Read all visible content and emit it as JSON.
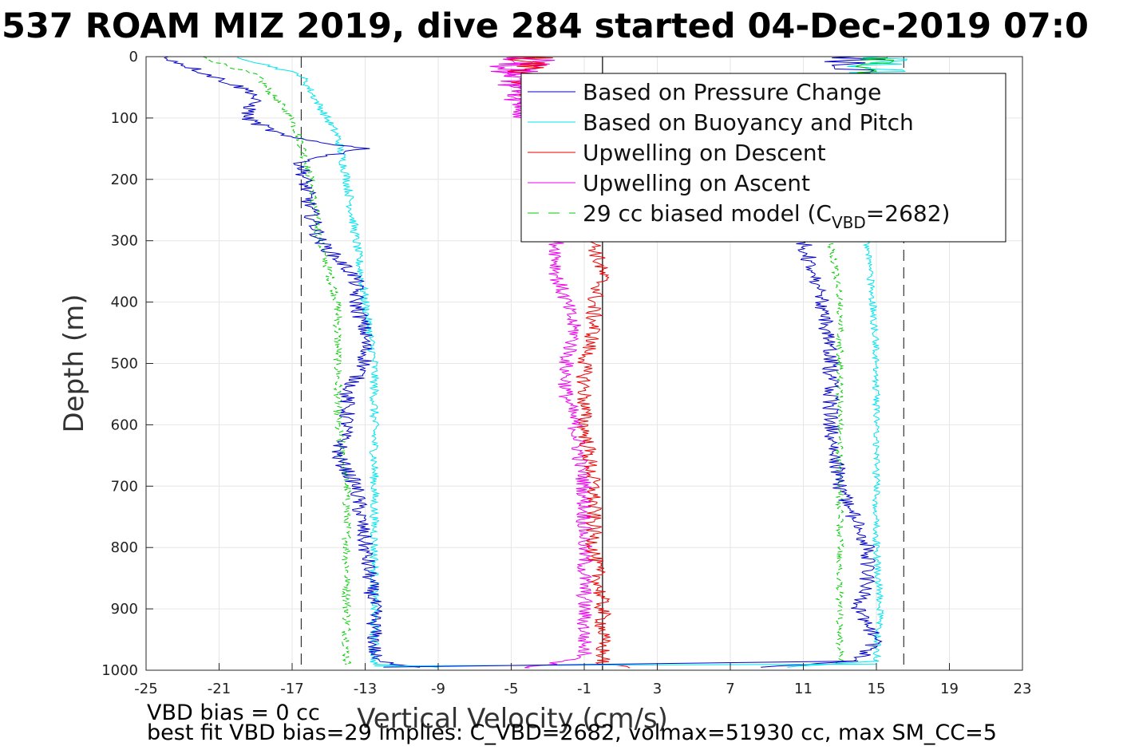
{
  "chart_data": {
    "type": "line",
    "title": "537 ROAM MIZ 2019, dive 284 started 04-Dec-2019 07:0",
    "xlabel": "Vertical Velocity (cm/s)",
    "ylabel": "Depth (m)",
    "xlim": [
      -25,
      23
    ],
    "ylim": [
      0,
      1000
    ],
    "y_reversed": true,
    "grid": true,
    "x_ticks": [
      "-25",
      "-21",
      "-17",
      "-13",
      "-9",
      "-5",
      "-1",
      "3",
      "7",
      "11",
      "15",
      "19",
      "23"
    ],
    "y_ticks": [
      "0",
      "100",
      "200",
      "300",
      "400",
      "500",
      "600",
      "700",
      "800",
      "900",
      "1000"
    ],
    "reference_lines": {
      "dashed_black_x": [
        -16.5,
        16.5
      ],
      "solid_black_x": [
        0
      ]
    },
    "legend_position": "top-right",
    "legend": {
      "pressure": "Based on Pressure Change",
      "buoyancy": "Based on Buoyancy and Pitch",
      "up_descent": "Upwelling on Descent",
      "up_ascent": "Upwelling on Ascent",
      "model_prefix": "29 cc biased model (C",
      "model_sub": "VBD",
      "model_suffix": "=2682)"
    },
    "series": [
      {
        "key": "pressure",
        "color": "#0000cc",
        "style": "solid",
        "descent": [
          [
            0,
            -24
          ],
          [
            30,
            -21.5
          ],
          [
            60,
            -19
          ],
          [
            100,
            -19.5
          ],
          [
            130,
            -17.5
          ],
          [
            150,
            -13
          ],
          [
            170,
            -16.5
          ],
          [
            250,
            -16
          ],
          [
            300,
            -15.5
          ],
          [
            360,
            -13.5
          ],
          [
            400,
            -13.5
          ],
          [
            450,
            -13
          ],
          [
            500,
            -13
          ],
          [
            550,
            -14
          ],
          [
            600,
            -14
          ],
          [
            650,
            -14.5
          ],
          [
            700,
            -13.5
          ],
          [
            800,
            -13
          ],
          [
            900,
            -12.5
          ],
          [
            960,
            -12.5
          ],
          [
            985,
            -12.5
          ],
          [
            995,
            -10
          ]
        ],
        "ascent": [
          [
            995,
            9
          ],
          [
            985,
            14
          ],
          [
            950,
            15
          ],
          [
            900,
            14
          ],
          [
            850,
            14.5
          ],
          [
            800,
            14.5
          ],
          [
            700,
            13
          ],
          [
            600,
            12.5
          ],
          [
            500,
            12.5
          ],
          [
            400,
            12
          ],
          [
            300,
            11
          ]
        ]
      },
      {
        "key": "buoyancy",
        "color": "#00e5ee",
        "style": "solid",
        "descent": [
          [
            0,
            -20
          ],
          [
            30,
            -16.5
          ],
          [
            80,
            -15.5
          ],
          [
            130,
            -14.5
          ],
          [
            200,
            -14
          ],
          [
            300,
            -13.5
          ],
          [
            400,
            -13
          ],
          [
            500,
            -12.5
          ],
          [
            600,
            -12.5
          ],
          [
            700,
            -12.5
          ],
          [
            800,
            -12.5
          ],
          [
            900,
            -12.5
          ],
          [
            990,
            -12.5
          ],
          [
            995,
            -9
          ]
        ],
        "ascent": [
          [
            995,
            10
          ],
          [
            985,
            15
          ],
          [
            900,
            15.2
          ],
          [
            800,
            15
          ],
          [
            700,
            15
          ],
          [
            600,
            15
          ],
          [
            500,
            15
          ],
          [
            400,
            14.8
          ],
          [
            300,
            14.5
          ]
        ]
      },
      {
        "key": "up_descent",
        "color": "#ee0000",
        "style": "solid",
        "points": [
          [
            300,
            -0.5
          ],
          [
            360,
            0
          ],
          [
            400,
            -0.5
          ],
          [
            450,
            -0.5
          ],
          [
            500,
            -1
          ],
          [
            550,
            -1
          ],
          [
            600,
            -1
          ],
          [
            700,
            -0.5
          ],
          [
            800,
            -0.5
          ],
          [
            900,
            0
          ],
          [
            990,
            0
          ],
          [
            996,
            1.5
          ]
        ]
      },
      {
        "key": "up_ascent",
        "color": "#ee00ee",
        "style": "solid",
        "points": [
          [
            300,
            -2.5
          ],
          [
            360,
            -2.5
          ],
          [
            400,
            -2
          ],
          [
            450,
            -1.5
          ],
          [
            500,
            -2
          ],
          [
            550,
            -2
          ],
          [
            600,
            -1.5
          ],
          [
            700,
            -1
          ],
          [
            800,
            -1
          ],
          [
            900,
            -1
          ],
          [
            980,
            -1
          ],
          [
            996,
            -4
          ]
        ]
      },
      {
        "key": "model",
        "color": "#00cc00",
        "style": "dashed",
        "descent": [
          [
            0,
            -22
          ],
          [
            30,
            -19
          ],
          [
            100,
            -17
          ],
          [
            140,
            -16.5
          ],
          [
            200,
            -16
          ],
          [
            300,
            -15.5
          ],
          [
            400,
            -14.5
          ],
          [
            500,
            -14.5
          ],
          [
            600,
            -14.5
          ],
          [
            700,
            -14
          ],
          [
            800,
            -14
          ],
          [
            900,
            -14
          ],
          [
            990,
            -14
          ]
        ],
        "ascent": [
          [
            990,
            13
          ],
          [
            900,
            13
          ],
          [
            800,
            13
          ],
          [
            700,
            13
          ],
          [
            600,
            13
          ],
          [
            500,
            13
          ],
          [
            400,
            13
          ],
          [
            300,
            12.5
          ]
        ]
      }
    ],
    "surface_noise_region": {
      "depth_range": [
        0,
        100
      ],
      "note": "dense near-surface traces around x=-5 and x=12..17"
    }
  },
  "notes": {
    "vbd_bias": "VBD bias = 0 cc",
    "best_fit": "best fit VBD bias=29 implies: C_VBD=2682, volmax=51930 cc, max SM_CC=5"
  }
}
